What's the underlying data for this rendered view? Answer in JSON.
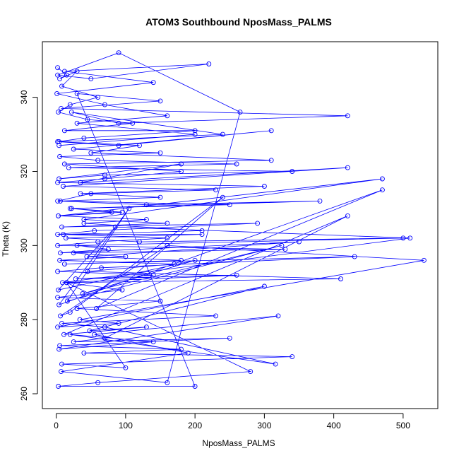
{
  "chart_data": {
    "type": "scatter",
    "title": "ATOM3 Southbound NposMass_PALMS",
    "xlabel": "NposMass_PALMS",
    "ylabel": "Theta (K)",
    "xlim": [
      -20,
      550
    ],
    "ylim": [
      256,
      355
    ],
    "xticks": [
      0,
      100,
      200,
      300,
      400,
      500
    ],
    "yticks": [
      260,
      280,
      300,
      320,
      340
    ],
    "grid": false,
    "legend": "none",
    "connected": true,
    "color": "#0000ff",
    "series": [
      {
        "x": [
          2,
          15,
          5,
          30,
          8,
          60,
          20,
          3,
          45,
          110,
          12,
          200,
          40,
          2,
          90,
          310,
          25,
          150,
          5,
          60,
          260,
          18,
          340,
          70,
          4,
          180,
          35,
          420,
          10,
          230,
          50,
          2,
          130,
          380,
          22,
          95,
          3,
          470,
          40,
          160,
          8,
          290,
          55,
          2,
          210,
          14,
          120,
          500,
          30,
          75,
          6,
          350,
          44,
          180,
          12,
          430,
          65,
          2,
          140,
          28,
          260,
          9,
          510,
          85,
          3,
          200,
          38,
          325,
          16,
          105,
          4,
          470,
          58,
          240,
          20,
          6,
          160,
          530,
          34,
          90,
          2,
          300,
          48,
          130,
          11,
          420,
          70,
          25,
          250,
          5,
          180,
          40,
          340,
          8,
          100,
          15,
          280,
          60,
          3,
          200,
          30,
          150,
          7,
          420,
          90,
          22,
          240,
          4,
          120,
          50,
          310,
          12,
          180,
          70,
          2,
          300,
          35,
          150,
          6,
          250,
          20,
          80,
          3,
          130,
          40,
          210,
          10,
          160,
          60,
          2,
          330,
          25,
          100,
          5,
          170,
          45,
          410,
          15,
          95,
          2,
          150,
          30,
          230,
          8,
          70,
          316,
          20,
          140,
          4,
          320,
          55,
          190,
          7,
          160,
          265,
          90,
          2,
          50,
          220,
          12,
          140,
          1,
          70,
          160,
          30,
          200,
          4
        ],
        "y": [
          348,
          346,
          345,
          347,
          343,
          340,
          338,
          336,
          334,
          333,
          331,
          331,
          329,
          328,
          327,
          331,
          326,
          325,
          324,
          323,
          322,
          321,
          320,
          319,
          318,
          322,
          317,
          321,
          316,
          315,
          314,
          312,
          311,
          312,
          310,
          309,
          308,
          318,
          307,
          306,
          305,
          306,
          304,
          303,
          303,
          302,
          301,
          302,
          300,
          299,
          298,
          301,
          297,
          296,
          295,
          297,
          294,
          293,
          292,
          291,
          292,
          290,
          302,
          305,
          288,
          296,
          287,
          300,
          285,
          310,
          284,
          315,
          283,
          313,
          282,
          281,
          300,
          296,
          280,
          279,
          278,
          289,
          277,
          278,
          276,
          308,
          275,
          274,
          275,
          273,
          272,
          271,
          270,
          268,
          267,
          290,
          266,
          263,
          262,
          262,
          341,
          339,
          337,
          335,
          333,
          336,
          330,
          328,
          327,
          325,
          323,
          322,
          320,
          318,
          317,
          316,
          314,
          313,
          312,
          311,
          310,
          309,
          308,
          307,
          306,
          304,
          303,
          302,
          301,
          300,
          299,
          298,
          297,
          296,
          295,
          293,
          291,
          290,
          288,
          286,
          285,
          283,
          281,
          279,
          278,
          268,
          276,
          274,
          272,
          281,
          276,
          271,
          266,
          263,
          336,
          352,
          346,
          345,
          349,
          347,
          344,
          341,
          338,
          335,
          333,
          330,
          327
        ]
      }
    ]
  }
}
